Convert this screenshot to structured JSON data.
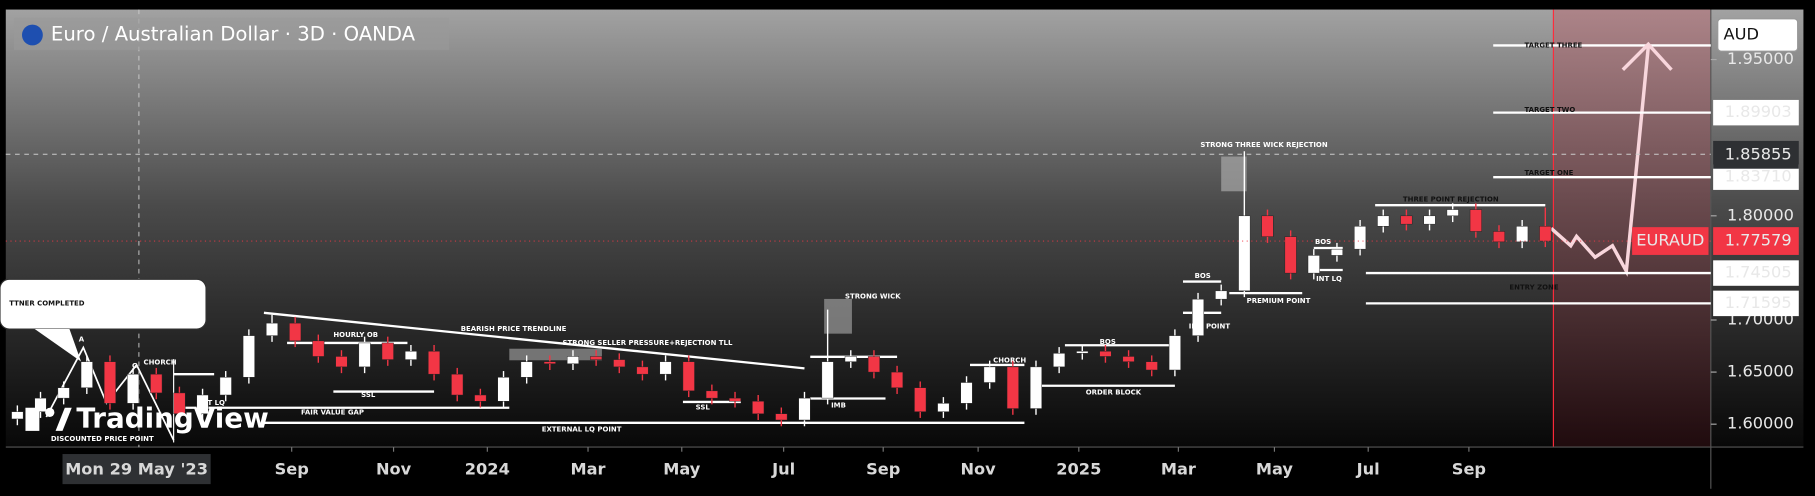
{
  "chart_data": {
    "type": "candlestick",
    "title": "Euro / Australian Dollar · 3D · OANDA",
    "currency": "AUD",
    "watermark": "TradingView",
    "up_color": "#ffffff",
    "down_color": "#f23645",
    "crosshair": {
      "value": 5.15,
      "label": "Mon 29 May '23"
    },
    "ylim": [
      1.578,
      1.998
    ],
    "yticks": [
      {
        "value": 1.6,
        "label": "1.60000"
      },
      {
        "value": 1.65,
        "label": "1.65000"
      },
      {
        "value": 1.7,
        "label": "1.70000"
      },
      {
        "value": 1.8,
        "label": "1.80000"
      },
      {
        "value": 1.95,
        "label": "1.95000"
      }
    ],
    "xticks": [
      {
        "value": 11.85,
        "label": "Sep"
      },
      {
        "value": 16.25,
        "label": "Nov"
      },
      {
        "value": 20.3,
        "label": "2024"
      },
      {
        "value": 24.65,
        "label": "Mar"
      },
      {
        "value": 28.7,
        "label": "May"
      },
      {
        "value": 33.1,
        "label": "Jul"
      },
      {
        "value": 37.4,
        "label": "Sep"
      },
      {
        "value": 41.5,
        "label": "Nov"
      },
      {
        "value": 45.85,
        "label": "2025"
      },
      {
        "value": 50.15,
        "label": "Mar"
      },
      {
        "value": 54.3,
        "label": "May"
      },
      {
        "value": 58.35,
        "label": "Jul"
      },
      {
        "value": 62.7,
        "label": "Sep"
      }
    ],
    "open": [
      1.605,
      1.612,
      1.625,
      1.635,
      1.66,
      1.62,
      1.648,
      1.63,
      1.61,
      1.628,
      1.645,
      1.685,
      1.697,
      1.68,
      1.665,
      1.655,
      1.678,
      1.662,
      1.67,
      1.648,
      1.628,
      1.622,
      1.645,
      1.66,
      1.658,
      1.665,
      1.662,
      1.655,
      1.648,
      1.66,
      1.632,
      1.625,
      1.622,
      1.61,
      1.604,
      1.625,
      1.66,
      1.665,
      1.65,
      1.635,
      1.612,
      1.62,
      1.64,
      1.655,
      1.615,
      1.655,
      1.668,
      1.67,
      1.665,
      1.66,
      1.652,
      1.685,
      1.72,
      1.728,
      1.8,
      1.78,
      1.745,
      1.762,
      1.768,
      1.79,
      1.8,
      1.792,
      1.8,
      1.806,
      1.785,
      1.775,
      1.79
    ],
    "high": [
      1.618,
      1.631,
      1.641,
      1.666,
      1.666,
      1.654,
      1.654,
      1.636,
      1.634,
      1.651,
      1.691,
      1.705,
      1.703,
      1.686,
      1.671,
      1.684,
      1.684,
      1.676,
      1.676,
      1.654,
      1.634,
      1.651,
      1.666,
      1.666,
      1.671,
      1.671,
      1.668,
      1.661,
      1.666,
      1.666,
      1.638,
      1.631,
      1.628,
      1.616,
      1.631,
      1.71,
      1.671,
      1.671,
      1.656,
      1.641,
      1.626,
      1.646,
      1.661,
      1.661,
      1.661,
      1.674,
      1.676,
      1.676,
      1.671,
      1.666,
      1.691,
      1.726,
      1.734,
      1.862,
      1.806,
      1.786,
      1.768,
      1.774,
      1.796,
      1.806,
      1.806,
      1.806,
      1.812,
      1.812,
      1.791,
      1.796,
      1.808
    ],
    "low": [
      1.599,
      1.606,
      1.619,
      1.629,
      1.614,
      1.614,
      1.624,
      1.604,
      1.604,
      1.622,
      1.639,
      1.679,
      1.674,
      1.659,
      1.649,
      1.649,
      1.656,
      1.656,
      1.642,
      1.622,
      1.616,
      1.616,
      1.639,
      1.652,
      1.652,
      1.656,
      1.649,
      1.642,
      1.642,
      1.626,
      1.619,
      1.616,
      1.604,
      1.598,
      1.598,
      1.619,
      1.654,
      1.644,
      1.629,
      1.606,
      1.606,
      1.614,
      1.634,
      1.609,
      1.609,
      1.649,
      1.662,
      1.659,
      1.654,
      1.646,
      1.646,
      1.679,
      1.714,
      1.722,
      1.774,
      1.739,
      1.739,
      1.756,
      1.762,
      1.784,
      1.786,
      1.786,
      1.794,
      1.779,
      1.769,
      1.769,
      1.77
    ],
    "close": [
      1.612,
      1.625,
      1.635,
      1.66,
      1.62,
      1.648,
      1.63,
      1.61,
      1.628,
      1.645,
      1.685,
      1.697,
      1.68,
      1.665,
      1.655,
      1.678,
      1.662,
      1.67,
      1.648,
      1.628,
      1.622,
      1.645,
      1.66,
      1.658,
      1.665,
      1.662,
      1.655,
      1.648,
      1.66,
      1.632,
      1.625,
      1.622,
      1.61,
      1.604,
      1.625,
      1.66,
      1.665,
      1.65,
      1.635,
      1.612,
      1.62,
      1.64,
      1.655,
      1.615,
      1.655,
      1.668,
      1.67,
      1.665,
      1.66,
      1.652,
      1.685,
      1.72,
      1.728,
      1.8,
      1.78,
      1.745,
      1.762,
      1.768,
      1.79,
      1.8,
      1.792,
      1.8,
      1.806,
      1.785,
      1.775,
      1.79,
      1.7758
    ],
    "symbol": "EURAUD",
    "last_price": {
      "value": 1.77579,
      "label": "1.77579"
    },
    "crosshair_price": {
      "value": 1.85855,
      "label": "1.85855"
    },
    "price_labels": [
      {
        "value": 1.89903,
        "label": "1.89903"
      },
      {
        "value": 1.8371,
        "label": "1.83710"
      },
      {
        "value": 1.74505,
        "label": "1.74505"
      },
      {
        "value": 1.71595,
        "label": "1.71595"
      }
    ],
    "annotations": [
      "TTNER COMPLETED",
      "A",
      "C",
      "CHORCH",
      "INT LQ",
      "DISCOUNTED PRICE POINT",
      "HOURLY OB",
      "SSL",
      "FAIR VALUE GAP",
      "BEARISH PRICE TRENDLINE",
      "STRONG SELLER PRESSURE+REJECTION TLL",
      "EXTERNAL LQ POINT",
      "SSL",
      "STRONG WICK",
      "IMB",
      "CHORCH",
      "BOS",
      "ORDER BLOCK",
      "BOS",
      "IMB POINT",
      "PREMIUM POINT",
      "STRONG THREE WICK REJECTION",
      "BOS",
      "INT LQ",
      "THREE POINT REJECTION",
      "ENTRY ZONE",
      "TARGET THREE",
      "TARGET TWO",
      "TARGET ONE"
    ]
  }
}
